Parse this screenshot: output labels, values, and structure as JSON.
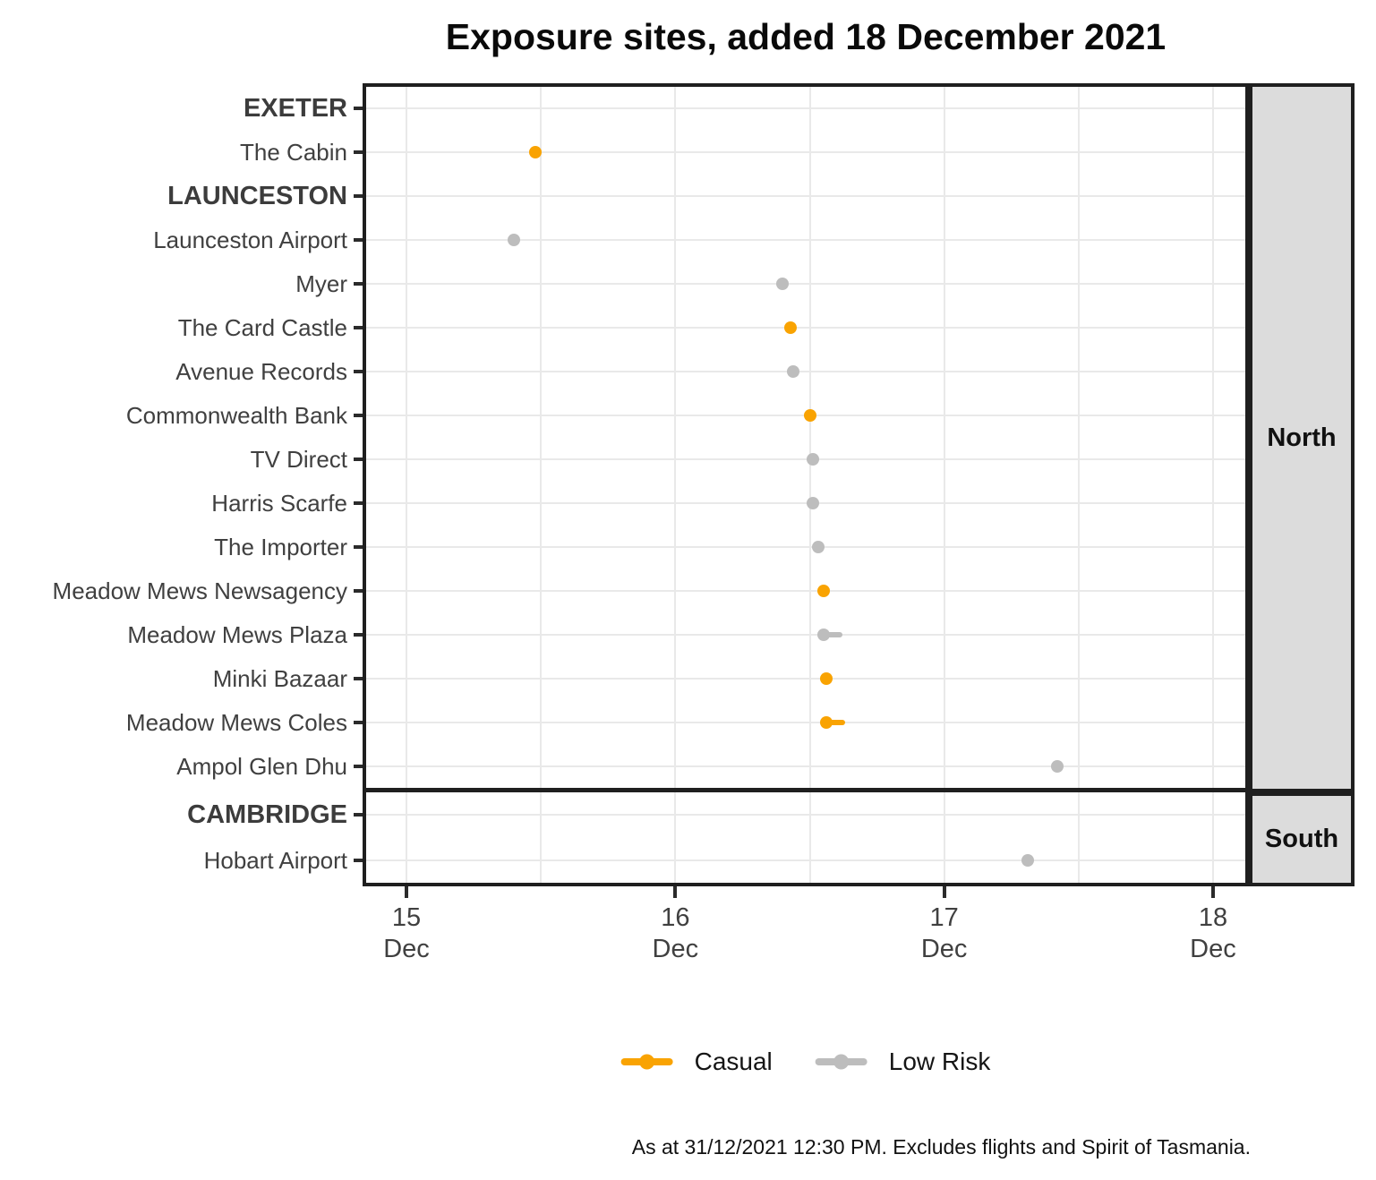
{
  "legend": {
    "items": [
      {
        "label": "Casual",
        "color": "#F9A302"
      },
      {
        "label": "Low Risk",
        "color": "#BDBDBD"
      }
    ]
  },
  "chart_data": {
    "type": "scatter",
    "title": "Exposure sites, added 18 December 2021",
    "caption": "As at 31/12/2021 12:30 PM. Excludes flights and Spirit of Tasmania.",
    "xlabel": "",
    "ylabel": "",
    "x_unit": "day of December 2021 (decimal = time of day)",
    "x_domain": [
      14.85,
      18.12
    ],
    "x_ticks": [
      {
        "day": 15,
        "line1": "15",
        "line2": "Dec"
      },
      {
        "day": 16,
        "line1": "16",
        "line2": "Dec"
      },
      {
        "day": 17,
        "line1": "17",
        "line2": "Dec"
      },
      {
        "day": 18,
        "line1": "18",
        "line2": "Dec"
      }
    ],
    "x_minor_gridlines": [
      15.5,
      16.5,
      17.5
    ],
    "grid": "on",
    "legend_position": "bottom",
    "facets": [
      {
        "name": "North",
        "rows": [
          {
            "label": "EXETER",
            "header": true
          },
          {
            "label": "The Cabin",
            "risk": "Casual",
            "start": 15.48,
            "end": 15.48
          },
          {
            "label": "LAUNCESTON",
            "header": true
          },
          {
            "label": "Launceston Airport",
            "risk": "Low Risk",
            "start": 15.4,
            "end": 15.4
          },
          {
            "label": "Myer",
            "risk": "Low Risk",
            "start": 16.4,
            "end": 16.4
          },
          {
            "label": "The Card Castle",
            "risk": "Casual",
            "start": 16.43,
            "end": 16.43
          },
          {
            "label": "Avenue Records",
            "risk": "Low Risk",
            "start": 16.44,
            "end": 16.44
          },
          {
            "label": "Commonwealth Bank",
            "risk": "Casual",
            "start": 16.5,
            "end": 16.5
          },
          {
            "label": "TV Direct",
            "risk": "Low Risk",
            "start": 16.51,
            "end": 16.51
          },
          {
            "label": "Harris Scarfe",
            "risk": "Low Risk",
            "start": 16.51,
            "end": 16.51
          },
          {
            "label": "The Importer",
            "risk": "Low Risk",
            "start": 16.53,
            "end": 16.53
          },
          {
            "label": "Meadow Mews Newsagency",
            "risk": "Casual",
            "start": 16.55,
            "end": 16.55
          },
          {
            "label": "Meadow Mews Plaza",
            "risk": "Low Risk",
            "start": 16.55,
            "end": 16.6
          },
          {
            "label": "Minki Bazaar",
            "risk": "Casual",
            "start": 16.56,
            "end": 16.56
          },
          {
            "label": "Meadow Mews Coles",
            "risk": "Casual",
            "start": 16.56,
            "end": 16.61
          },
          {
            "label": "Ampol Glen Dhu",
            "risk": "Low Risk",
            "start": 17.42,
            "end": 17.42
          }
        ]
      },
      {
        "name": "South",
        "rows": [
          {
            "label": "CAMBRIDGE",
            "header": true
          },
          {
            "label": "Hobart Airport",
            "risk": "Low Risk",
            "start": 17.31,
            "end": 17.31
          }
        ]
      }
    ]
  }
}
